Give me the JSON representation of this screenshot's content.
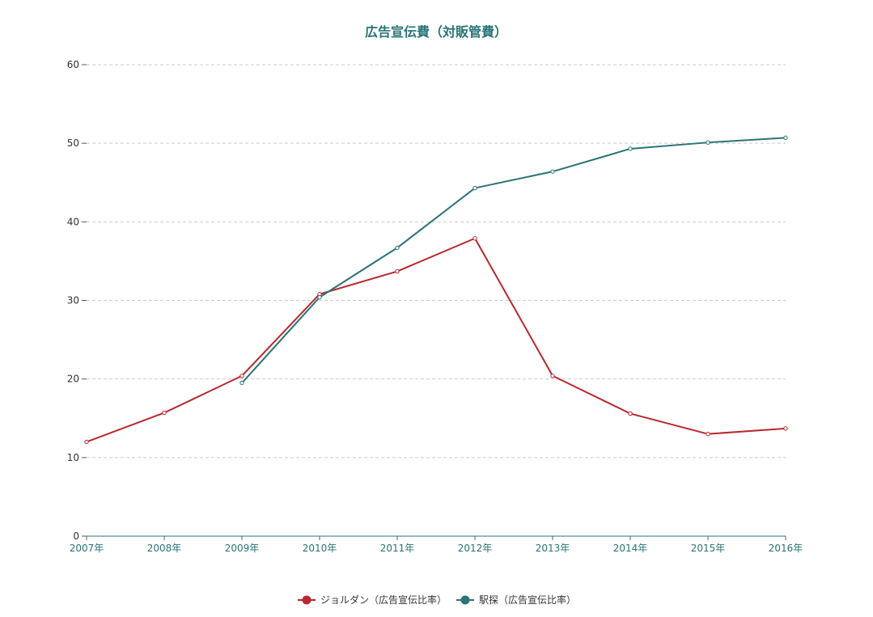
{
  "chart_data": {
    "type": "line",
    "title": "広告宣伝費（対販管費）",
    "categories": [
      "2007年",
      "2008年",
      "2009年",
      "2010年",
      "2011年",
      "2012年",
      "2013年",
      "2014年",
      "2015年",
      "2016年"
    ],
    "ylim": [
      0,
      60
    ],
    "yticks": [
      "0",
      "10",
      "20",
      "30",
      "40",
      "50",
      "60"
    ],
    "grid": true,
    "legend_position": "bottom-center",
    "series": [
      {
        "name": "ジョルダン（広告宣伝比率）",
        "color": "#b8282e",
        "values": [
          12.0,
          15.7,
          20.4,
          30.8,
          33.7,
          37.9,
          20.4,
          15.6,
          13.0,
          13.7
        ]
      },
      {
        "name": "駅探（広告宣伝比率）",
        "color": "#2a7377",
        "values": [
          null,
          null,
          19.5,
          30.4,
          36.7,
          44.3,
          46.4,
          49.3,
          50.1,
          50.7
        ]
      }
    ]
  }
}
